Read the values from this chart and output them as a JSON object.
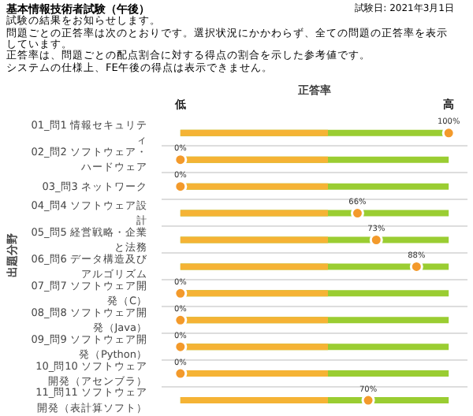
{
  "chart_data": {
    "type": "other",
    "title": "基本情報技術者試験（午後）",
    "subtitle": "試験日: 2021年3月1日",
    "annotations": [
      "試験の結果をお知らせします。",
      "問題ごとの正答率は次のとおりです。選択状況にかかわらず、全ての問題の正答率を表示しています。",
      "正答率は、問題ごとの配点割合に対する得点の割合を示した参考値です。",
      "システムの仕様上、FE午後の得点は表示できません。",
      "低",
      "高"
    ],
    "xlabel": "正答率",
    "ylabel": "出題分野",
    "categories": [
      "01_問1 情報セキュリティ",
      "02_問2 ソフトウェア・ハードウェア",
      "03_問3 ネットワーク",
      "04_問4 ソフトウェア設計",
      "05_問5 経営戦略・企業と法務",
      "06_問6 データ構造及びアルゴリズム",
      "07_問7 ソフトウェア開発（C）",
      "08_問8 ソフトウェア開発（Java）",
      "09_問9 ソフトウェア開発（Python）",
      "10_問10 ソフトウェア開発（アセンブラ）",
      "11_問11 ソフトウェア開発（表計算ソフト）"
    ],
    "values": [
      100,
      0,
      0,
      66,
      73,
      88,
      0,
      0,
      0,
      0,
      70
    ],
    "value_labels": [
      "100%",
      "0%",
      "0%",
      "66%",
      "73%",
      "88%",
      "0%",
      "0%",
      "0%",
      "0%",
      "70%"
    ],
    "color": "#f39a2b"
  }
}
